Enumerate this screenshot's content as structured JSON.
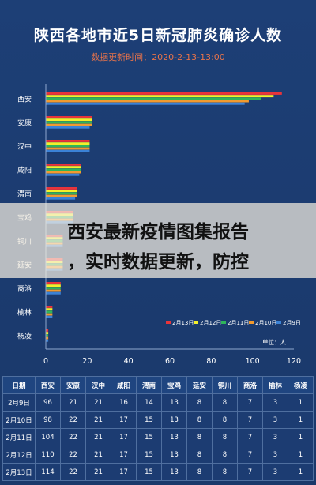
{
  "page": {
    "title": "陕西各地市近5日新冠肺炎确诊人数",
    "update_label": "数据更新时间：",
    "update_time": "2020-2-13-13:00"
  },
  "banner": {
    "line1": "西安最新疫情图集报告",
    "line2": "，实时数据更新，防控"
  },
  "chart_data": {
    "type": "bar",
    "orientation": "horizontal",
    "title": "陕西各地市近5日新冠肺炎确诊人数",
    "unit_label": "单位：人",
    "categories": [
      "西安",
      "安康",
      "汉中",
      "咸阳",
      "渭南",
      "宝鸡",
      "铜川",
      "延安",
      "商洛",
      "榆林",
      "杨凌"
    ],
    "series": [
      {
        "name": "2月13日",
        "color": "#e8343a",
        "values": [
          114,
          22,
          21,
          17,
          15,
          13,
          8,
          8,
          7,
          3,
          1
        ]
      },
      {
        "name": "2月12日",
        "color": "#f4ef2a",
        "values": [
          110,
          22,
          21,
          17,
          15,
          13,
          8,
          8,
          7,
          3,
          1
        ]
      },
      {
        "name": "2月11日",
        "color": "#2fb55a",
        "values": [
          104,
          22,
          21,
          17,
          15,
          13,
          8,
          8,
          7,
          3,
          1
        ]
      },
      {
        "name": "2月10日",
        "color": "#f29a2e",
        "values": [
          98,
          22,
          21,
          17,
          15,
          13,
          8,
          8,
          7,
          3,
          1
        ]
      },
      {
        "name": "2月9日",
        "color": "#3b82d6",
        "values": [
          96,
          21,
          21,
          16,
          14,
          13,
          8,
          8,
          7,
          3,
          1
        ]
      }
    ],
    "xticks": [
      0,
      20,
      40,
      60,
      80,
      100,
      120
    ],
    "xlim": [
      0,
      120
    ],
    "legend_position": "bottom-right",
    "grid": false
  },
  "table": {
    "headers": [
      "日期",
      "西安",
      "安康",
      "汉中",
      "咸阳",
      "渭南",
      "宝鸡",
      "延安",
      "铜川",
      "商洛",
      "榆林",
      "杨凌"
    ],
    "rows": [
      [
        "2月9日",
        "96",
        "21",
        "21",
        "16",
        "14",
        "13",
        "8",
        "8",
        "7",
        "3",
        "1"
      ],
      [
        "2月10日",
        "98",
        "22",
        "21",
        "17",
        "15",
        "13",
        "8",
        "8",
        "7",
        "3",
        "1"
      ],
      [
        "2月11日",
        "104",
        "22",
        "21",
        "17",
        "15",
        "13",
        "8",
        "8",
        "7",
        "3",
        "1"
      ],
      [
        "2月12日",
        "110",
        "22",
        "21",
        "17",
        "15",
        "13",
        "8",
        "8",
        "7",
        "3",
        "1"
      ],
      [
        "2月13日",
        "114",
        "22",
        "21",
        "17",
        "15",
        "13",
        "8",
        "8",
        "7",
        "3",
        "1"
      ]
    ]
  }
}
